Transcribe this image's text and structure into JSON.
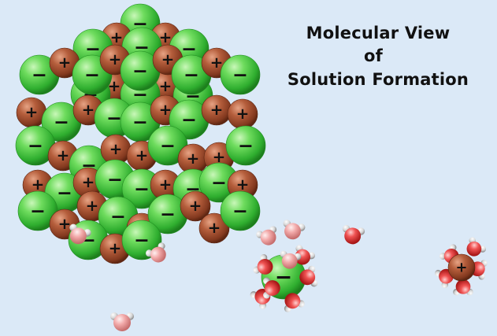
{
  "title": {
    "line1": "Molecular View",
    "line2": "of",
    "line3": "Solution Formation"
  },
  "ion_labels": {
    "anion": "−",
    "cation": "+"
  },
  "colors": {
    "background": "#dbe9f7",
    "anion": "#3fbf3f",
    "cation": "#9a4a2e",
    "water_oxygen": "#e23b3b",
    "water_hydrogen": "#d9d9d9"
  },
  "icons": [
    "anion-sphere-icon",
    "cation-sphere-icon",
    "water-molecule-icon"
  ]
}
